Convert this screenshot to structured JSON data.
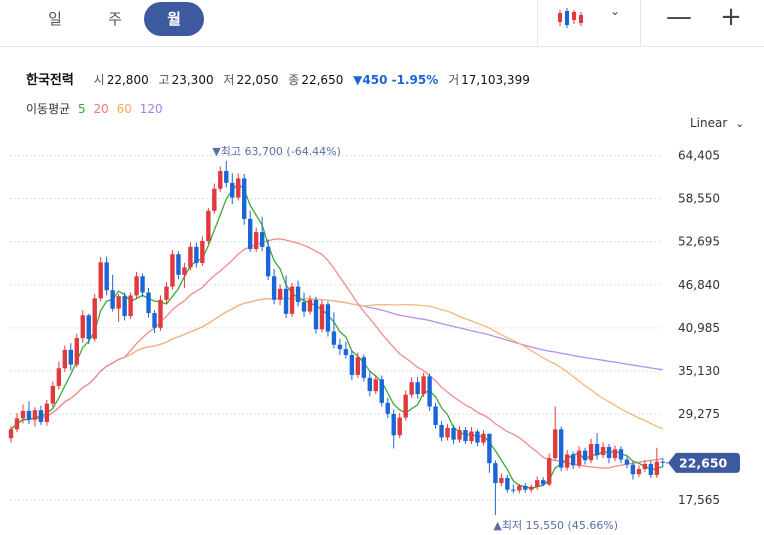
{
  "tabs": [
    {
      "label": "일",
      "active": false
    },
    {
      "label": "주",
      "active": false
    },
    {
      "label": "월",
      "active": true
    }
  ],
  "toolbar": {
    "chart_type_icon": "candlestick-icon",
    "zoom_out": "—",
    "zoom_in": "+",
    "caret": "⌄"
  },
  "stock": {
    "name": "한국전력",
    "open_label": "시",
    "open": "22,800",
    "high_label": "고",
    "high": "23,300",
    "low_label": "저",
    "low": "22,050",
    "close_label": "종",
    "close": "22,650",
    "change": "▼450 -1.95%",
    "volume_label": "거",
    "volume": "17,103,399"
  },
  "ma_legend": {
    "label": "이동평균",
    "items": [
      {
        "period": "5",
        "color": "#2eaa3c"
      },
      {
        "period": "20",
        "color": "#f07a7a"
      },
      {
        "period": "60",
        "color": "#f5a95a"
      },
      {
        "period": "120",
        "color": "#a77ee6"
      }
    ]
  },
  "scale_label": "Linear",
  "colors": {
    "up": "#e03a3e",
    "down": "#1a66d6",
    "ma5": "#3aaa3a",
    "ma20": "#f28b8b",
    "ma60": "#f6b77a",
    "ma120": "#b58ef0",
    "price_tag": "#3d5a9e"
  },
  "chart_data": {
    "type": "candlestick",
    "y_ticks": [
      "64,405",
      "58,550",
      "52,695",
      "46,840",
      "40,985",
      "35,130",
      "29,275",
      "17,565"
    ],
    "y_tick_values": [
      64405,
      58550,
      52695,
      46840,
      40985,
      35130,
      29275,
      17565
    ],
    "ylim": [
      14200,
      67200
    ],
    "current_price": 22650,
    "current_price_label": "22,650",
    "high_annotation": {
      "label": "▼최고 63,700 (-64.44%)",
      "value": 63700,
      "index": 37
    },
    "low_annotation": {
      "label": "▲최저 15,550 (45.66%)",
      "value": 15550,
      "index": 81
    },
    "grid": true,
    "ma_periods": [
      5,
      20,
      60,
      120
    ],
    "candles": [
      [
        26000,
        27600,
        25400,
        27200
      ],
      [
        27200,
        29400,
        26800,
        28700
      ],
      [
        28700,
        30600,
        28000,
        29700
      ],
      [
        29700,
        31000,
        27900,
        28500
      ],
      [
        28500,
        30200,
        27600,
        29800
      ],
      [
        29800,
        30400,
        27800,
        28200
      ],
      [
        28200,
        31200,
        27700,
        30700
      ],
      [
        30700,
        33700,
        30200,
        33100
      ],
      [
        33100,
        36400,
        32600,
        35500
      ],
      [
        35500,
        38600,
        35000,
        38000
      ],
      [
        38000,
        38900,
        35200,
        36000
      ],
      [
        36000,
        40200,
        35600,
        39600
      ],
      [
        39600,
        43400,
        39000,
        42700
      ],
      [
        42700,
        42900,
        38800,
        39500
      ],
      [
        39500,
        45600,
        39100,
        45000
      ],
      [
        45000,
        50600,
        44600,
        49900
      ],
      [
        49900,
        50700,
        45400,
        46100
      ],
      [
        46100,
        48200,
        43200,
        43600
      ],
      [
        43600,
        45600,
        41800,
        45300
      ],
      [
        45300,
        45800,
        42000,
        42600
      ],
      [
        42600,
        45800,
        42200,
        45400
      ],
      [
        45400,
        48600,
        45000,
        48000
      ],
      [
        48000,
        48400,
        45200,
        45800
      ],
      [
        45800,
        46400,
        42400,
        43000
      ],
      [
        43000,
        43400,
        40300,
        41000
      ],
      [
        41000,
        45400,
        40600,
        44800
      ],
      [
        44800,
        47200,
        44200,
        46600
      ],
      [
        46600,
        51600,
        46200,
        51000
      ],
      [
        51000,
        51400,
        47600,
        48200
      ],
      [
        48200,
        49800,
        46400,
        49200
      ],
      [
        49200,
        52600,
        48800,
        52000
      ],
      [
        52000,
        52600,
        49200,
        49800
      ],
      [
        49800,
        53400,
        49400,
        52800
      ],
      [
        52800,
        57300,
        52400,
        56900
      ],
      [
        56900,
        60600,
        56500,
        59900
      ],
      [
        59900,
        62900,
        59500,
        62300
      ],
      [
        62300,
        63700,
        60100,
        60700
      ],
      [
        60700,
        62000,
        57800,
        58700
      ],
      [
        58700,
        62000,
        58300,
        61300
      ],
      [
        61300,
        61900,
        55000,
        55800
      ],
      [
        55800,
        56900,
        51300,
        51700
      ],
      [
        51700,
        54600,
        51300,
        54000
      ],
      [
        54000,
        56100,
        51400,
        52000
      ],
      [
        52000,
        53000,
        47500,
        48000
      ],
      [
        48000,
        49000,
        44200,
        44800
      ],
      [
        44800,
        46900,
        44100,
        46300
      ],
      [
        46300,
        48100,
        42300,
        42900
      ],
      [
        42900,
        47100,
        42500,
        46600
      ],
      [
        46600,
        47400,
        43900,
        44500
      ],
      [
        44500,
        45800,
        42500,
        43200
      ],
      [
        43200,
        45400,
        42800,
        44800
      ],
      [
        44800,
        45200,
        40200,
        40800
      ],
      [
        40800,
        44800,
        40400,
        44200
      ],
      [
        44200,
        44600,
        39800,
        40500
      ],
      [
        40500,
        43100,
        38200,
        38700
      ],
      [
        38700,
        39500,
        37300,
        38100
      ],
      [
        38100,
        39100,
        36800,
        37300
      ],
      [
        37300,
        37900,
        33900,
        34600
      ],
      [
        34600,
        37600,
        34200,
        37000
      ],
      [
        37000,
        37400,
        33700,
        34200
      ],
      [
        34200,
        35100,
        31700,
        32400
      ],
      [
        32400,
        34600,
        32000,
        34000
      ],
      [
        34000,
        34500,
        30300,
        30800
      ],
      [
        30800,
        31500,
        28700,
        29300
      ],
      [
        29300,
        29900,
        24600,
        26400
      ],
      [
        26400,
        29400,
        26000,
        28800
      ],
      [
        28800,
        32500,
        28400,
        31900
      ],
      [
        31900,
        34300,
        31500,
        33600
      ],
      [
        33600,
        34300,
        31400,
        32000
      ],
      [
        32000,
        34900,
        31600,
        34400
      ],
      [
        34400,
        34800,
        29700,
        30300
      ],
      [
        30300,
        30800,
        27300,
        27800
      ],
      [
        27800,
        28300,
        25600,
        26100
      ],
      [
        26100,
        27900,
        25700,
        27400
      ],
      [
        27400,
        27800,
        25200,
        25800
      ],
      [
        25800,
        27600,
        25400,
        27100
      ],
      [
        27100,
        27500,
        25200,
        25600
      ],
      [
        25600,
        27500,
        25200,
        26900
      ],
      [
        26900,
        27200,
        24900,
        25400
      ],
      [
        25400,
        27100,
        25000,
        26600
      ],
      [
        26600,
        26600,
        21300,
        22600
      ],
      [
        22600,
        23000,
        15550,
        19900
      ],
      [
        19900,
        21200,
        19500,
        20600
      ],
      [
        20600,
        21000,
        18600,
        19000
      ],
      [
        19000,
        19700,
        18500,
        18900
      ],
      [
        18900,
        19800,
        18500,
        19500
      ],
      [
        19500,
        19900,
        18600,
        19000
      ],
      [
        19000,
        19700,
        18600,
        19400
      ],
      [
        19400,
        20800,
        19000,
        20300
      ],
      [
        20300,
        20700,
        19500,
        19700
      ],
      [
        19700,
        23900,
        19500,
        23300
      ],
      [
        23300,
        30300,
        22900,
        27200
      ],
      [
        27200,
        27600,
        21500,
        22000
      ],
      [
        22000,
        24400,
        21600,
        23800
      ],
      [
        23800,
        24200,
        21800,
        22300
      ],
      [
        22300,
        24900,
        21900,
        24300
      ],
      [
        24300,
        24700,
        22400,
        23000
      ],
      [
        23000,
        25900,
        22600,
        25200
      ],
      [
        25200,
        26700,
        23100,
        23700
      ],
      [
        23700,
        25400,
        23300,
        24800
      ],
      [
        24800,
        25200,
        22600,
        23300
      ],
      [
        23300,
        25000,
        22900,
        24500
      ],
      [
        24500,
        24900,
        22600,
        23100
      ],
      [
        23100,
        23500,
        21900,
        22400
      ],
      [
        22400,
        22800,
        20400,
        21100
      ],
      [
        21100,
        22300,
        20700,
        21800
      ],
      [
        21800,
        23000,
        21400,
        22500
      ],
      [
        22500,
        22900,
        20600,
        21000
      ],
      [
        21000,
        24700,
        20600,
        22800
      ],
      [
        22800,
        23300,
        22050,
        22650
      ]
    ]
  }
}
